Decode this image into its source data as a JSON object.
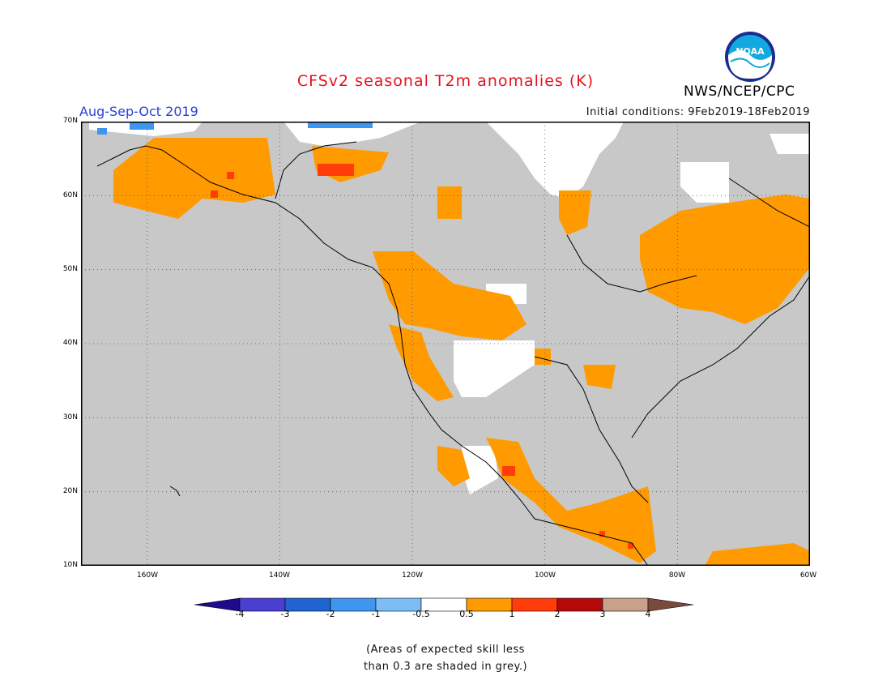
{
  "header": {
    "title": "CFSv2 seasonal T2m anomalies (K)",
    "period": "Aug-Sep-Oct 2019",
    "initial_conditions": "Initial conditions: 9Feb2019-18Feb2019",
    "organization": "NWS/NCEP/CPC",
    "logo_text": "NOAA"
  },
  "map": {
    "projection": "lat-lon",
    "lon_range": [
      -170,
      -60
    ],
    "lat_range": [
      10,
      70
    ],
    "latitude_labels": [
      "70N",
      "60N",
      "50N",
      "40N",
      "30N",
      "20N",
      "10N"
    ],
    "longitude_labels": [
      "160W",
      "140W",
      "120W",
      "100W",
      "80W",
      "60W"
    ],
    "gridlines": true,
    "low_skill_color": "#c8c8c8",
    "ocean_color": "#c8c8c8",
    "coastline_color": "#000000"
  },
  "colorbar": {
    "tick_labels": [
      "-4",
      "-3",
      "-2",
      "-1",
      "-0.5",
      "0.5",
      "1",
      "2",
      "3",
      "4"
    ],
    "colors": [
      "#1e0a8c",
      "#4b3fd2",
      "#1f64d0",
      "#3f96ee",
      "#7dbdf5",
      "#ffffff",
      "#ff9a00",
      "#ff3c0a",
      "#b40a0a",
      "#c8a08c",
      "#7a4a3c"
    ]
  },
  "note": {
    "line1": "(Areas of expected skill less",
    "line2": "than 0.3 are shaded in grey.)"
  }
}
